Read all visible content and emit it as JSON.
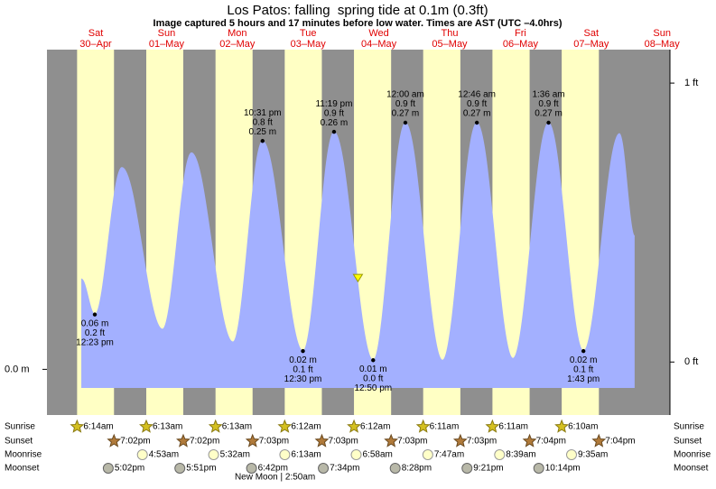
{
  "chart_data": {
    "type": "area",
    "title": "Los Patos: falling  spring tide at 0.1m (0.3ft)",
    "subtitle": "Image captured 5 hours and 17 minutes before low water. Times are AST (UTC –4.0hrs)",
    "days": [
      {
        "weekday": "Sat",
        "date": "30–Apr"
      },
      {
        "weekday": "Sun",
        "date": "01–May"
      },
      {
        "weekday": "Mon",
        "date": "02–May"
      },
      {
        "weekday": "Tue",
        "date": "03–May"
      },
      {
        "weekday": "Wed",
        "date": "04–May"
      },
      {
        "weekday": "Thu",
        "date": "05–May"
      },
      {
        "weekday": "Fri",
        "date": "06–May"
      },
      {
        "weekday": "Sat",
        "date": "07–May"
      },
      {
        "weekday": "Sun",
        "date": "08–May"
      }
    ],
    "xlim": [
      -0.175,
      8.82
    ],
    "ylim": [
      -0.05,
      0.35
    ],
    "yticks": [
      {
        "value": 0,
        "label": "0.0 m"
      }
    ],
    "y2lim": [
      -0.19,
      1.12
    ],
    "y2ticks": [
      {
        "value": 0,
        "label": "0 ft"
      },
      {
        "value": 1,
        "label": "1 ft"
      }
    ],
    "series": [
      {
        "name": "Tide height",
        "color": "#a3b0ff",
        "x": [
          0.321,
          0.516,
          0.907,
          1.493,
          1.911,
          2.51,
          2.938,
          3.521,
          3.97,
          4.535,
          5.0,
          5.536,
          6.032,
          6.553,
          7.067,
          7.571,
          8.09,
          8.31
        ],
        "values": [
          0.099,
          0.06,
          0.221,
          0.044,
          0.237,
          0.03,
          0.25,
          0.02,
          0.26,
          0.01,
          0.27,
          0.01,
          0.27,
          0.012,
          0.27,
          0.02,
          0.258,
          0.146
        ]
      }
    ],
    "annotations": [
      {
        "x": 0.516,
        "value": 0.06,
        "labels": [
          "0.06 m",
          "0.2 ft",
          "12:23 pm"
        ]
      },
      {
        "x": 2.938,
        "value": 0.25,
        "labels": [
          "10:31 pm",
          "0.8 ft",
          "0.25 m"
        ]
      },
      {
        "x": 3.521,
        "value": 0.02,
        "labels": [
          "0.02 m",
          "0.1 ft",
          "12:30 pm"
        ]
      },
      {
        "x": 3.97,
        "value": 0.26,
        "labels": [
          "11:19 pm",
          "0.9 ft",
          "0.26 m"
        ]
      },
      {
        "x": 4.535,
        "value": 0.01,
        "labels": [
          "0.01 m",
          "0.0 ft",
          "12:50 pm"
        ]
      },
      {
        "x": 5.0,
        "value": 0.27,
        "labels": [
          "12:00 am",
          "0.9 ft",
          "0.27 m"
        ]
      },
      {
        "x": 6.032,
        "value": 0.27,
        "labels": [
          "12:46 am",
          "0.9 ft",
          "0.27 m"
        ]
      },
      {
        "x": 7.067,
        "value": 0.27,
        "labels": [
          "1:36 am",
          "0.9 ft",
          "0.27 m"
        ]
      },
      {
        "x": 7.571,
        "value": 0.02,
        "labels": [
          "0.02 m",
          "0.1 ft",
          "1:43 pm"
        ]
      }
    ],
    "now_marker": {
      "x": 4.315,
      "value": 0.1
    },
    "almanac": [
      {
        "label": "Sunrise",
        "events": [
          {
            "x": 0.26,
            "label": "6:14am"
          },
          {
            "x": 1.259,
            "label": "6:13am"
          },
          {
            "x": 2.259,
            "label": "6:13am"
          },
          {
            "x": 3.258,
            "label": "6:12am"
          },
          {
            "x": 4.258,
            "label": "6:12am"
          },
          {
            "x": 5.257,
            "label": "6:11am"
          },
          {
            "x": 6.257,
            "label": "6:11am"
          },
          {
            "x": 7.257,
            "label": "6:10am"
          }
        ]
      },
      {
        "label": "Sunset",
        "events": [
          {
            "x": 0.793,
            "label": "7:02pm"
          },
          {
            "x": 1.793,
            "label": "7:02pm"
          },
          {
            "x": 2.794,
            "label": "7:03pm"
          },
          {
            "x": 3.794,
            "label": "7:03pm"
          },
          {
            "x": 4.794,
            "label": "7:03pm"
          },
          {
            "x": 5.794,
            "label": "7:03pm"
          },
          {
            "x": 6.794,
            "label": "7:04pm"
          },
          {
            "x": 7.794,
            "label": "7:04pm"
          }
        ]
      },
      {
        "label": "Moonrise",
        "events": [
          {
            "x": 1.203,
            "label": "4:53am"
          },
          {
            "x": 2.231,
            "label": "5:32am"
          },
          {
            "x": 3.259,
            "label": "6:13am"
          },
          {
            "x": 4.29,
            "label": "6:58am"
          },
          {
            "x": 5.324,
            "label": "7:47am"
          },
          {
            "x": 6.36,
            "label": "8:39am"
          },
          {
            "x": 7.399,
            "label": "9:35am"
          }
        ]
      },
      {
        "label": "Moonset",
        "events": [
          {
            "x": 0.71,
            "label": "5:02pm"
          },
          {
            "x": 1.744,
            "label": "5:51pm"
          },
          {
            "x": 2.779,
            "label": "6:42pm"
          },
          {
            "x": 3.815,
            "label": "7:34pm"
          },
          {
            "x": 4.853,
            "label": "8:28pm"
          },
          {
            "x": 5.89,
            "label": "9:21pm"
          },
          {
            "x": 6.926,
            "label": "10:14pm"
          }
        ]
      }
    ],
    "moon_phase": {
      "x": 3.118,
      "label": "New Moon | 2:50am"
    }
  }
}
